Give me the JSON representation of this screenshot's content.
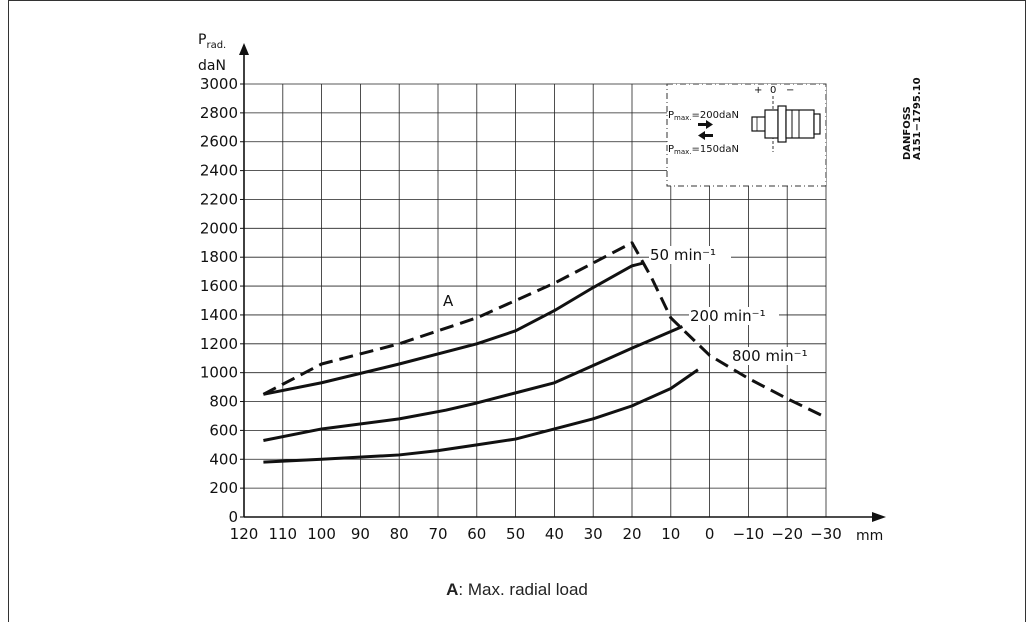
{
  "chart_data": {
    "type": "line",
    "xlabel": "mm",
    "ylabel_top": "P",
    "ylabel_sub": "rad.",
    "ylabel_unit": "daN",
    "x_ticks": [
      "120",
      "110",
      "100",
      "90",
      "80",
      "70",
      "60",
      "50",
      "40",
      "30",
      "20",
      "10",
      "0",
      "−10",
      "−20",
      "−30"
    ],
    "x_tick_values": [
      120,
      110,
      100,
      90,
      80,
      70,
      60,
      50,
      40,
      30,
      20,
      10,
      0,
      -10,
      -20,
      -30
    ],
    "y_ticks": [
      "0",
      "200",
      "400",
      "600",
      "800",
      "1000",
      "1200",
      "1400",
      "1600",
      "1800",
      "2000",
      "2200",
      "2400",
      "2600",
      "2800",
      "3000"
    ],
    "y_tick_values": [
      0,
      200,
      400,
      600,
      800,
      1000,
      1200,
      1400,
      1600,
      1800,
      2000,
      2200,
      2400,
      2600,
      2800,
      3000
    ],
    "xlim": [
      120,
      -30
    ],
    "ylim": [
      0,
      3000
    ],
    "grid": true,
    "series": [
      {
        "name": "A",
        "style": "dashed",
        "x": [
          115,
          100,
          80,
          60,
          40,
          20,
          15,
          10,
          0,
          -10,
          -20,
          -30
        ],
        "y": [
          850,
          1060,
          1200,
          1380,
          1620,
          1900,
          1660,
          1380,
          1120,
          960,
          820,
          690
        ]
      },
      {
        "name": "50 min⁻¹",
        "style": "solid",
        "x": [
          115,
          100,
          80,
          60,
          50,
          40,
          30,
          20,
          17
        ],
        "y": [
          850,
          930,
          1060,
          1200,
          1290,
          1430,
          1590,
          1740,
          1760
        ]
      },
      {
        "name": "200 min⁻¹",
        "style": "solid",
        "x": [
          115,
          100,
          80,
          68,
          60,
          50,
          40,
          30,
          20,
          7
        ],
        "y": [
          530,
          610,
          680,
          740,
          790,
          860,
          930,
          1050,
          1170,
          1320
        ]
      },
      {
        "name": "800 min⁻¹",
        "style": "solid",
        "x": [
          115,
          100,
          80,
          70,
          60,
          50,
          40,
          30,
          20,
          10,
          3
        ],
        "y": [
          380,
          400,
          430,
          460,
          500,
          540,
          610,
          680,
          770,
          890,
          1020
        ]
      }
    ],
    "annotations": {
      "curve_a_label": "A",
      "label_50": "50  min⁻¹",
      "label_200": "200  min⁻¹",
      "label_800": "800  min⁻¹"
    }
  },
  "inset": {
    "pmax_200": "P",
    "pmax_200_sub": "max.",
    "pmax_200_value": "=200daN",
    "pmax_150": "P",
    "pmax_150_sub": "max.",
    "pmax_150_value": "=150daN",
    "sign_plus": "+",
    "sign_zero": "0",
    "sign_minus": "−"
  },
  "side_code_line1": "DANFOSS",
  "side_code_line2": "A151−1795.10",
  "caption": {
    "key": "A",
    "text": ": Max. radial load"
  }
}
